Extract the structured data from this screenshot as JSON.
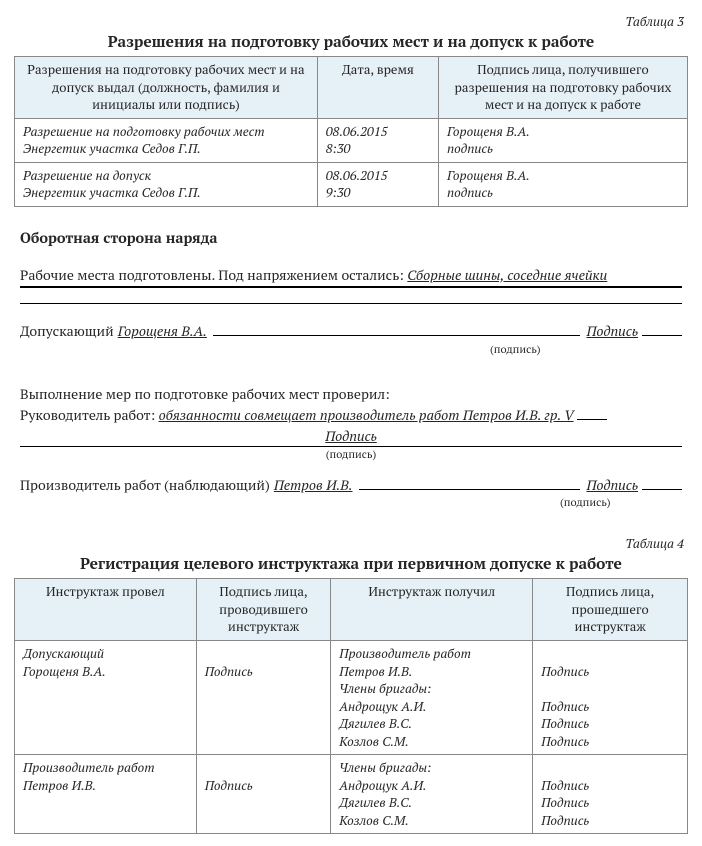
{
  "table3": {
    "label": "Таблица 3",
    "title": "Разрешения на подготовку рабочих мест и на допуск к работе",
    "headers": [
      "Разрешения на подготовку рабочих мест и на допуск выдал (должность, фамилия и инициалы или подпись)",
      "Дата, время",
      "Подпись лица, получившего разрешения на подготовку рабочих мест и на допуск к работе"
    ],
    "rows": [
      {
        "c1a": "Разрешение на подготовку рабочих мест",
        "c1b": "Энергетик участка Седов Г.П.",
        "c2a": "08.06.2015",
        "c2b": "8:30",
        "c3a": "Горощеня В.А.",
        "c3b": "подпись"
      },
      {
        "c1a": "Разрешение на допуск",
        "c1b": "Энергетик участка Седов Г.П.",
        "c2a": "08.06.2015",
        "c2b": "9:30",
        "c3a": "Горощеня В.А.",
        "c3b": "подпись"
      }
    ]
  },
  "back": {
    "heading": "Оборотная сторона наряда",
    "prepared_text": "Рабочие места подготовлены. Под напряжением остались:",
    "prepared_value": "Сборные шины, соседние ячейки",
    "admitting_label": "Допускающий",
    "admitting_name": "Горощеня В.А.",
    "sig_word": "Подпись",
    "sig_note": "(подпись)",
    "check_line": "Выполнение мер по подготовке рабочих мест проверил:",
    "supervisor_label": "Руководитель работ:",
    "supervisor_value": "обязанности совмещает производитель работ Петров И.В. гр. V",
    "producer_label": "Производитель работ (наблюдающий)",
    "producer_name": "Петров И.В."
  },
  "table4": {
    "label": "Таблица 4",
    "title": "Регистрация целевого инструктажа при первичном допуске к работе",
    "headers": [
      "Инструктаж провел",
      "Подпись лица, проводившего инструктаж",
      "Инструктаж получил",
      "Подпись лица, прошедшего инструктаж"
    ],
    "rows": [
      {
        "c1": [
          "Допускающий",
          "Горощеня В.А."
        ],
        "c2": [
          "",
          "Подпись"
        ],
        "c3": [
          "Производитель работ",
          "Петров И.В.",
          "Члены бригады:",
          "Андрощук А.И.",
          "Дягилев В.С.",
          "Козлов С.М."
        ],
        "c4": [
          "",
          "Подпись",
          "",
          "Подпись",
          "Подпись",
          "Подпись"
        ]
      },
      {
        "c1": [
          "Производитель работ",
          "Петров И.В."
        ],
        "c2": [
          "",
          "Подпись"
        ],
        "c3": [
          "Члены бригады:",
          "Андрощук А.И.",
          "Дягилев В.С.",
          "Козлов С.М."
        ],
        "c4": [
          "",
          "Подпись",
          "Подпись",
          "Подпись"
        ]
      }
    ]
  }
}
